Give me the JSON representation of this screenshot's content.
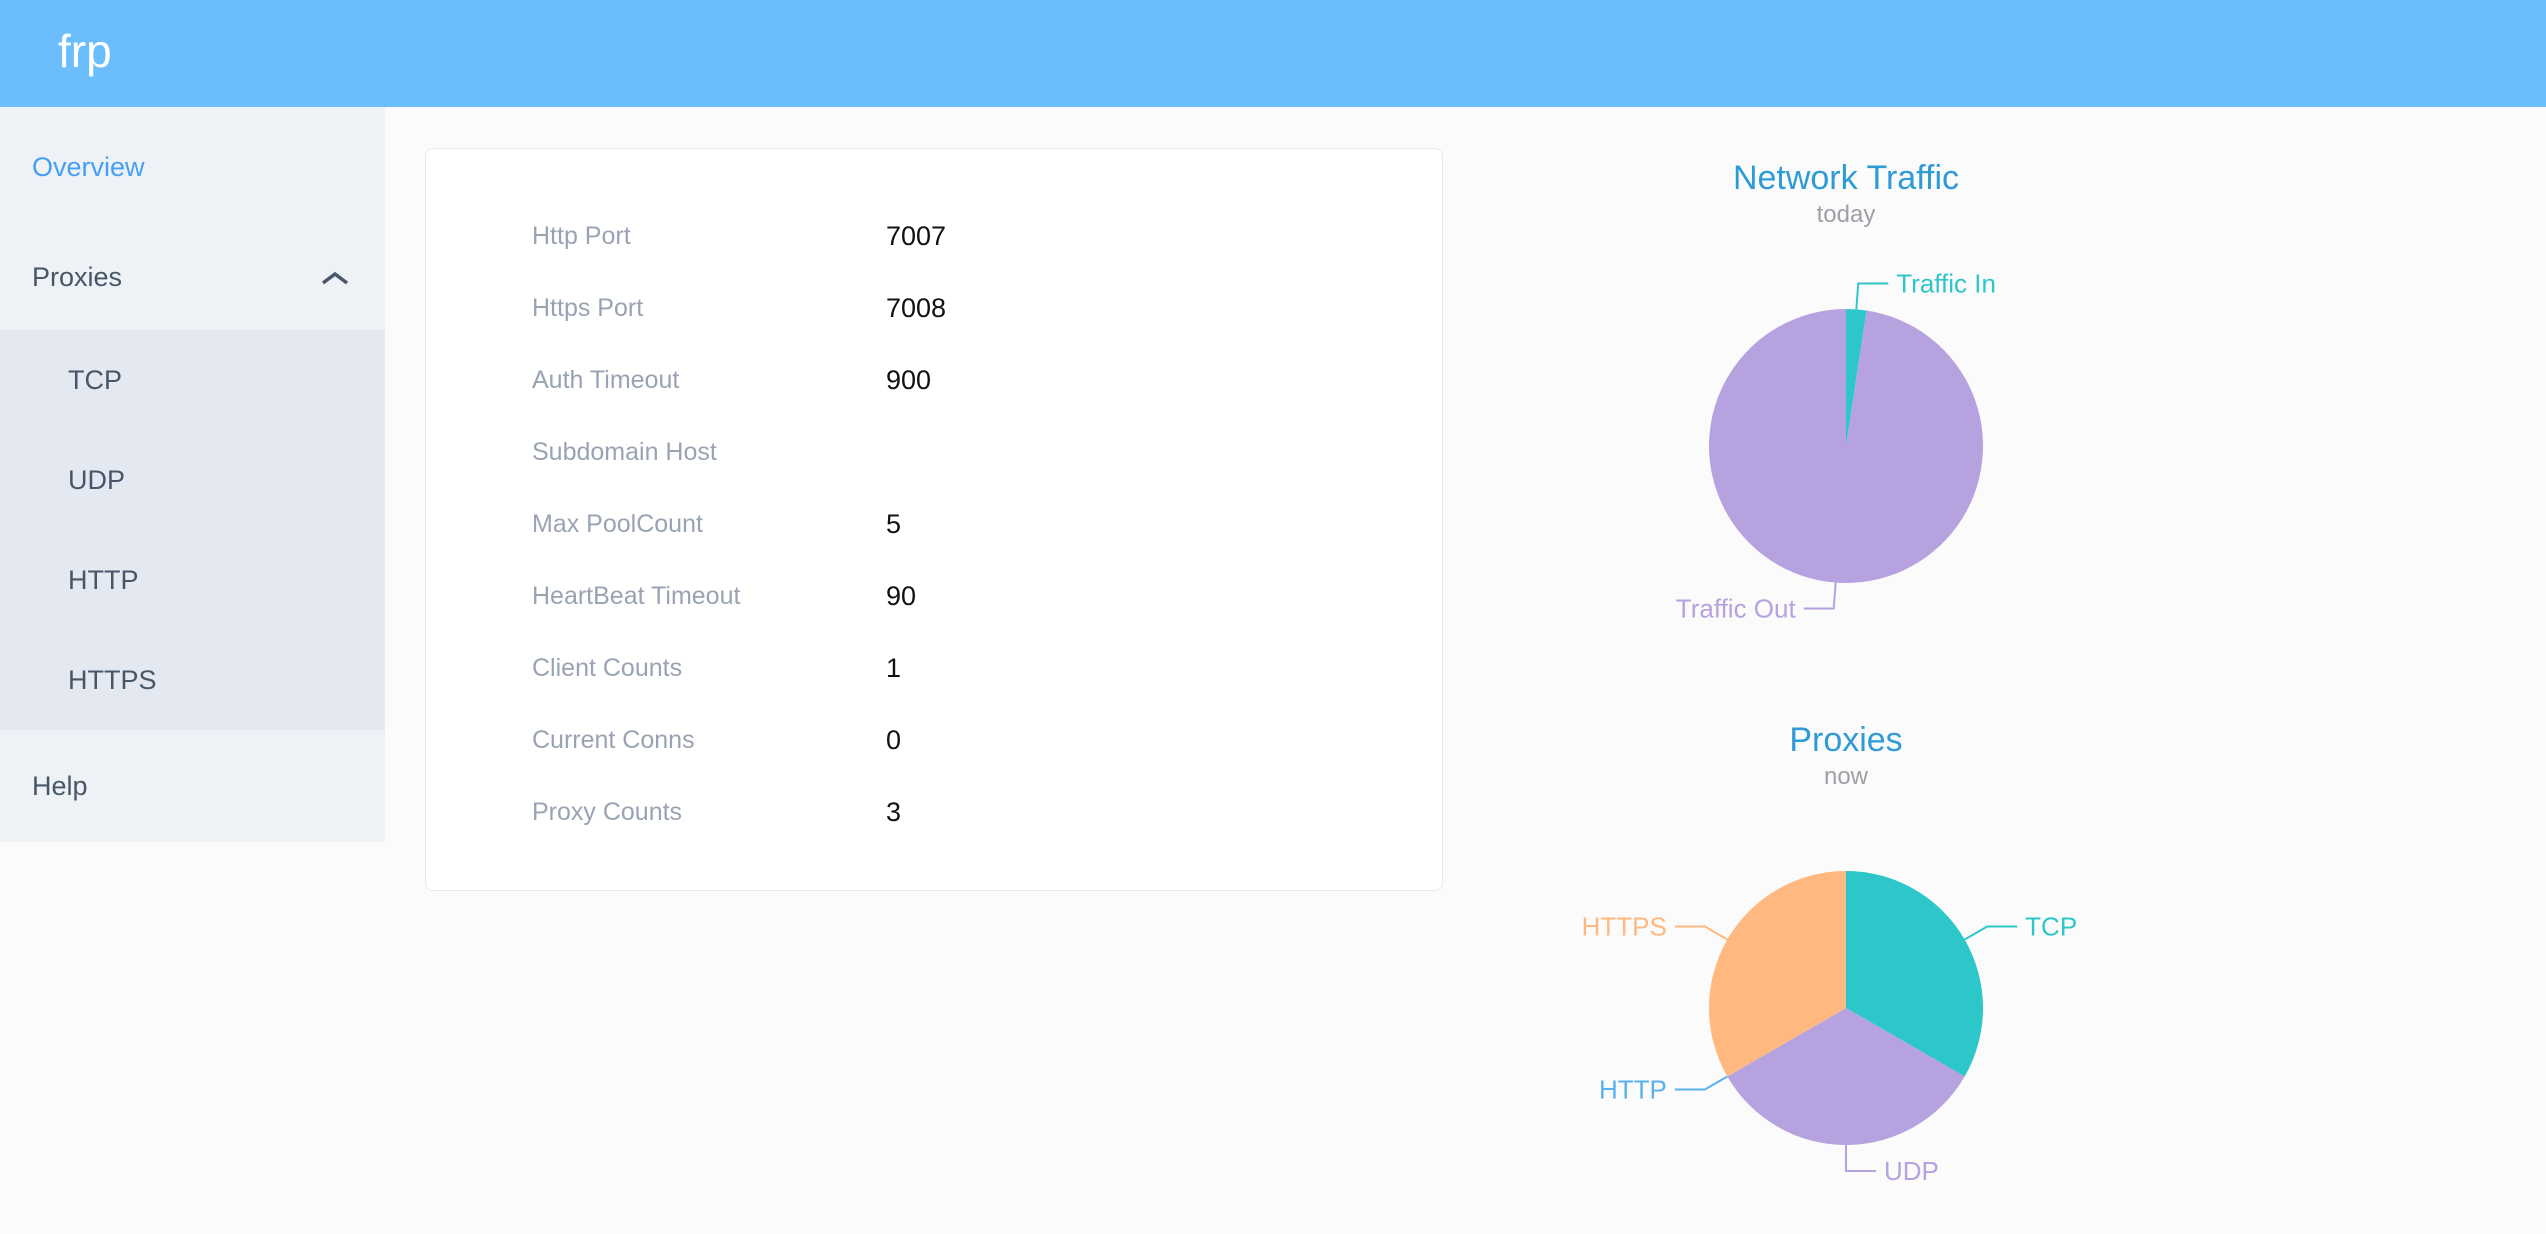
{
  "header": {
    "logo": "frp"
  },
  "sidebar": {
    "items": [
      {
        "label": "Overview",
        "active": true
      },
      {
        "label": "Proxies",
        "expanded": true,
        "children": [
          {
            "label": "TCP"
          },
          {
            "label": "UDP"
          },
          {
            "label": "HTTP"
          },
          {
            "label": "HTTPS"
          }
        ]
      },
      {
        "label": "Help"
      }
    ]
  },
  "server_info": {
    "rows": [
      {
        "label": "Http Port",
        "value": "7007"
      },
      {
        "label": "Https Port",
        "value": "7008"
      },
      {
        "label": "Auth Timeout",
        "value": "900"
      },
      {
        "label": "Subdomain Host",
        "value": ""
      },
      {
        "label": "Max PoolCount",
        "value": "5"
      },
      {
        "label": "HeartBeat Timeout",
        "value": "90"
      },
      {
        "label": "Client Counts",
        "value": "1"
      },
      {
        "label": "Current Conns",
        "value": "0"
      },
      {
        "label": "Proxy Counts",
        "value": "3"
      }
    ]
  },
  "chart_data": [
    {
      "type": "pie",
      "title": "Network Traffic",
      "subtitle": "today",
      "legend_position": "none",
      "values_estimated_from_pixels": true,
      "series": [
        {
          "name": "Traffic In",
          "value": 2.4,
          "color": "#2ec7c9"
        },
        {
          "name": "Traffic Out",
          "value": 97.6,
          "color": "#b6a2de"
        }
      ]
    },
    {
      "type": "pie",
      "title": "Proxies",
      "subtitle": "now",
      "legend_position": "none",
      "value_unit": "proxies",
      "series": [
        {
          "name": "TCP",
          "value": 1,
          "color": "#2ec7c9"
        },
        {
          "name": "UDP",
          "value": 1,
          "color": "#b6a2de"
        },
        {
          "name": "HTTP",
          "value": 0,
          "color": "#5ab1ef"
        },
        {
          "name": "HTTPS",
          "value": 1,
          "color": "#ffb980"
        }
      ]
    }
  ],
  "colors": {
    "header_bg": "#6cbdfb",
    "sidebar_bg": "#eef1f6",
    "submenu_bg": "#e4e8f1",
    "active_menu_text": "#459ff2",
    "menu_text": "#475669",
    "chart_title": "#2e9bd6",
    "chart_subtitle": "#9da0a5",
    "config_label": "#99a3b3"
  }
}
